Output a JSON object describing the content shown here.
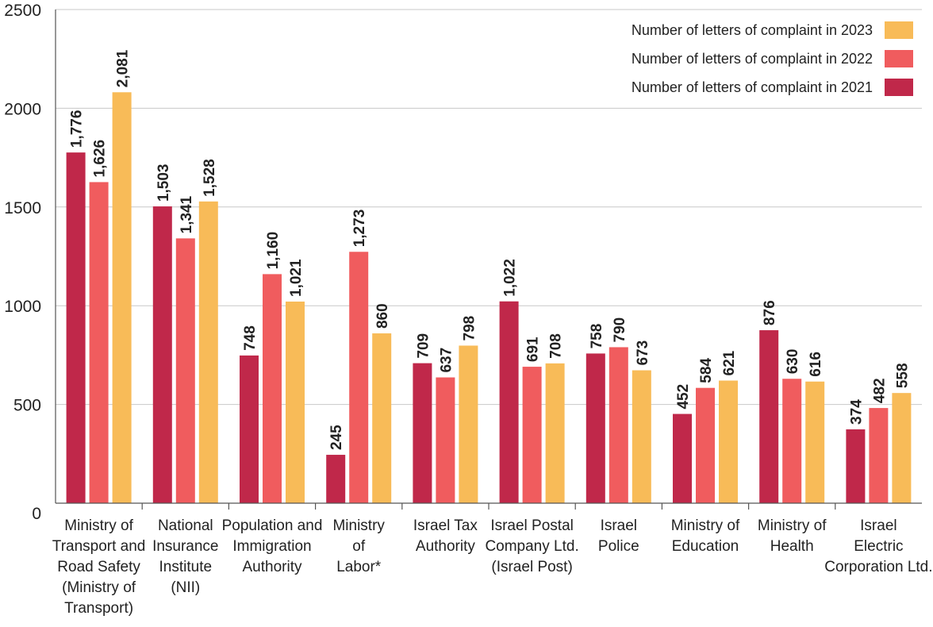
{
  "chart_data": {
    "type": "bar",
    "categories": [
      [
        "Ministry of",
        "Transport and",
        "Road Safety",
        "(Ministry of",
        "Transport)"
      ],
      [
        "National",
        "Insurance",
        "Institute",
        "(NII)"
      ],
      [
        "Population and",
        "Immigration",
        "Authority"
      ],
      [
        "Ministry",
        "of",
        "Labor*"
      ],
      [
        "Israel Tax",
        "Authority"
      ],
      [
        "Israel Postal",
        "Company Ltd.",
        "(Israel Post)"
      ],
      [
        "Israel",
        "Police"
      ],
      [
        "Ministry of",
        "Education"
      ],
      [
        "Ministry of",
        "Health"
      ],
      [
        "Israel",
        "Electric",
        "Corporation Ltd."
      ]
    ],
    "series": [
      {
        "name": "Number of letters of complaint in 2021",
        "color": "#c0284a",
        "values": [
          1776,
          1503,
          748,
          245,
          709,
          1022,
          758,
          452,
          876,
          374
        ],
        "labels": [
          "1,776",
          "1,503",
          "748",
          "245",
          "709",
          "1,022",
          "758",
          "452",
          "876",
          "374"
        ]
      },
      {
        "name": "Number of letters of complaint in 2022",
        "color": "#f05c5e",
        "values": [
          1626,
          1341,
          1160,
          1273,
          637,
          691,
          790,
          584,
          630,
          482
        ],
        "labels": [
          "1,626",
          "1,341",
          "1,160",
          "1,273",
          "637",
          "691",
          "790",
          "584",
          "630",
          "482"
        ]
      },
      {
        "name": "Number of letters of complaint in 2023",
        "color": "#f8bb58",
        "values": [
          2081,
          1528,
          1021,
          860,
          798,
          708,
          673,
          621,
          616,
          558
        ],
        "labels": [
          "2,081",
          "1,528",
          "1,021",
          "860",
          "798",
          "708",
          "673",
          "621",
          "616",
          "558"
        ]
      }
    ],
    "legend_order": [
      2,
      1,
      0
    ],
    "ylim": [
      0,
      2500
    ],
    "yticks": [
      0,
      500,
      1000,
      1500,
      2000,
      2500
    ],
    "ytick_labels": [
      "0",
      "500",
      "1000",
      "1500",
      "2000",
      "2500"
    ],
    "grid": true,
    "legend_position": "top-right",
    "title": "",
    "xlabel": "",
    "ylabel": ""
  }
}
